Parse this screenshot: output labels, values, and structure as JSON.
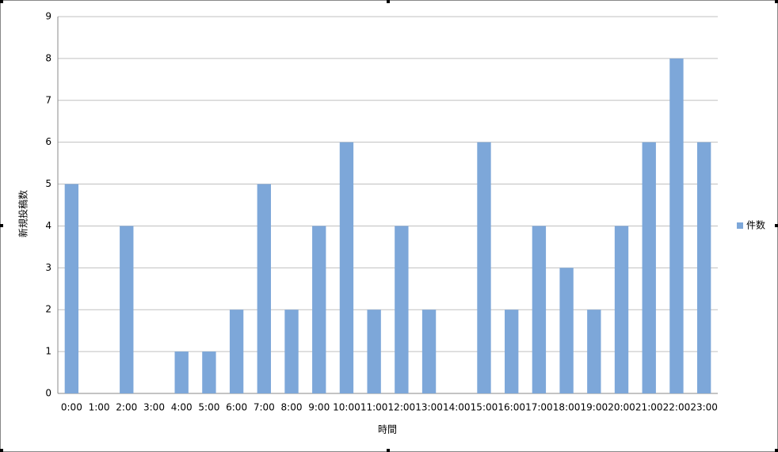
{
  "chart_data": {
    "type": "bar",
    "y_label": "新規投稿数",
    "x_label": "時間",
    "categories": [
      "0:00",
      "1:00",
      "2:00",
      "3:00",
      "4:00",
      "5:00",
      "6:00",
      "7:00",
      "8:00",
      "9:00",
      "10:00",
      "11:00",
      "12:00",
      "13:00",
      "14:00",
      "15:00",
      "16:00",
      "17:00",
      "18:00",
      "19:00",
      "20:00",
      "21:00",
      "22:00",
      "23:00"
    ],
    "series": [
      {
        "name": "件数",
        "color": "#7da7d9",
        "values": [
          5,
          0,
          4,
          0,
          1,
          1,
          2,
          5,
          2,
          4,
          6,
          2,
          4,
          2,
          0,
          6,
          2,
          4,
          3,
          2,
          4,
          6,
          8,
          6
        ]
      }
    ],
    "ylim": [
      0,
      9
    ],
    "yticks": [
      0,
      1,
      2,
      3,
      4,
      5,
      6,
      7,
      8,
      9
    ],
    "grid": true
  }
}
